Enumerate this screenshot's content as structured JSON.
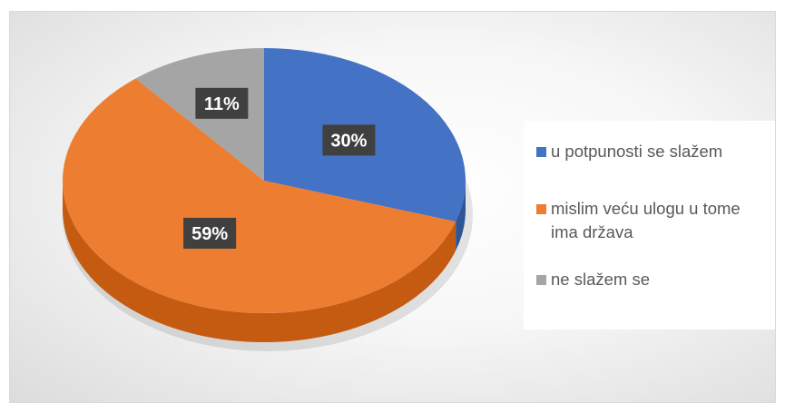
{
  "chart_data": {
    "type": "pie",
    "title": "",
    "categories": [
      "u potpunosti se slažem",
      "mislim veću ulogu u tome ima država",
      "ne slažem se"
    ],
    "values": [
      30,
      59,
      11
    ],
    "data_labels": [
      "30%",
      "59%",
      "11%"
    ],
    "colors": [
      "#4472C4",
      "#ED7D31",
      "#A5A5A5"
    ],
    "side_colors": [
      "#2F5597",
      "#C55A11",
      "#7F7F7F"
    ],
    "legend_position": "right",
    "style": "3d"
  }
}
